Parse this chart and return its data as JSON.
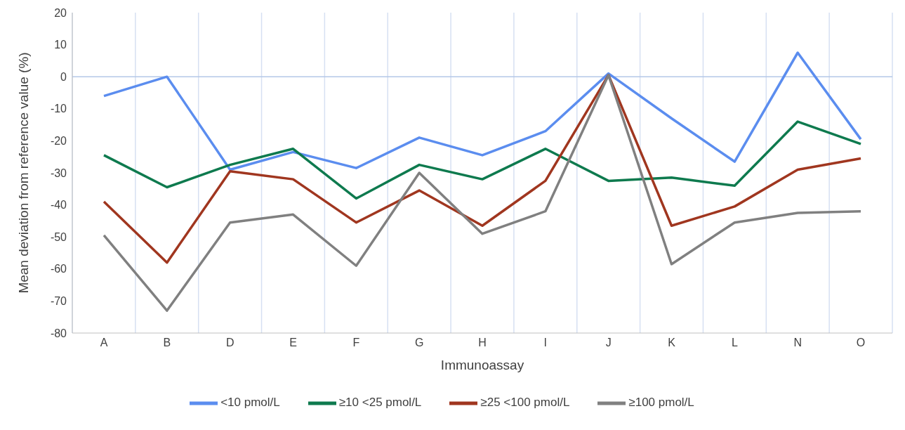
{
  "chart_data": {
    "type": "line",
    "xlabel": "Immunoassay",
    "ylabel": "Mean deviation from reference value (%)",
    "categories": [
      "A",
      "B",
      "D",
      "E",
      "F",
      "G",
      "H",
      "I",
      "J",
      "K",
      "L",
      "N",
      "O"
    ],
    "series": [
      {
        "name": "<10 pmol/L",
        "color": "#5b8def",
        "values": [
          -6,
          0,
          -29,
          -23.5,
          -28.5,
          -19,
          -24.5,
          -17,
          1,
          -13,
          -26.5,
          7.5,
          -19.5
        ]
      },
      {
        "name": "≥10 <25 pmol/L",
        "color": "#0e7a4e",
        "values": [
          -24.5,
          -34.5,
          -27.5,
          -22.5,
          -38,
          -27.5,
          -32,
          -22.5,
          -32.5,
          -31.5,
          -34,
          -14,
          -21
        ]
      },
      {
        "name": "≥25 <100 pmol/L",
        "color": "#a0361f",
        "values": [
          -39,
          -58,
          -29.5,
          -32,
          -45.5,
          -35.5,
          -46.5,
          -32.5,
          0.5,
          -46.5,
          -40.5,
          -29,
          -25.5
        ]
      },
      {
        "name": "≥100 pmol/L",
        "color": "#808080",
        "values": [
          -49.5,
          -73,
          -45.5,
          -43,
          -59,
          -30,
          -49,
          -42,
          0.5,
          -58.5,
          -45.5,
          -42.5,
          -42
        ]
      }
    ],
    "ylim": [
      -80,
      20
    ],
    "yticks": [
      -80,
      -70,
      -60,
      -50,
      -40,
      -30,
      -20,
      -10,
      0,
      10,
      20
    ],
    "grid": "x",
    "legend": "bottom",
    "marker": "none",
    "line_style": "solid",
    "ref_lines": [
      {
        "axis": "y",
        "value": 0,
        "color": "#b4c7e7"
      }
    ]
  }
}
